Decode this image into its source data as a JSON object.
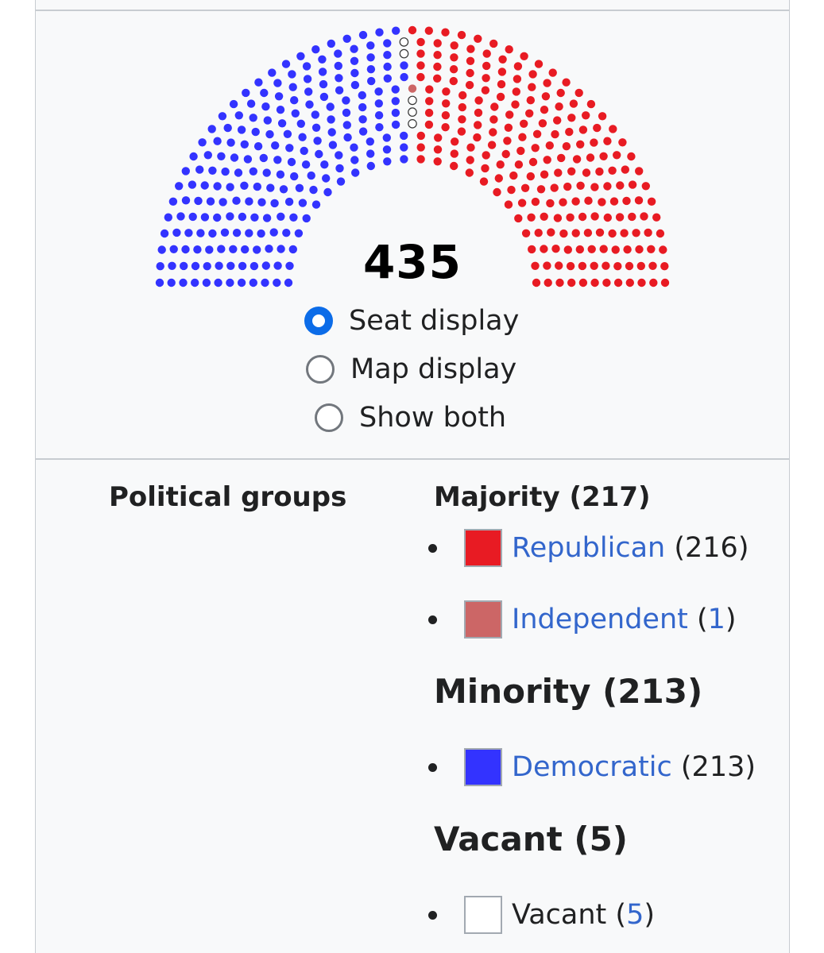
{
  "seat_chart": {
    "total": "435",
    "total_seats": 435,
    "order": [
      "democratic",
      "vacant",
      "independent",
      "republican"
    ],
    "parties": {
      "democratic": {
        "seats": 213,
        "color": "#3333ff"
      },
      "vacant": {
        "seats": 5,
        "color": "#ffffff"
      },
      "independent": {
        "seats": 1,
        "color": "#cc6666"
      },
      "republican": {
        "seats": 216,
        "color": "#e81b23"
      }
    }
  },
  "display_options": [
    {
      "label": "Seat display",
      "checked": true
    },
    {
      "label": "Map display",
      "checked": false
    },
    {
      "label": "Show both",
      "checked": false
    }
  ],
  "political_groups": {
    "title": "Political groups",
    "groups": [
      {
        "heading": "Majority (217)",
        "members": [
          {
            "name": "Republican",
            "count": "(216)",
            "color": "#e81b23",
            "count_linked": false
          },
          {
            "name": "Independent",
            "count": "1",
            "color": "#cc6666",
            "count_linked": true
          }
        ]
      },
      {
        "heading": "Minority (213)",
        "members": [
          {
            "name": "Democratic",
            "count": "(213)",
            "color": "#3333ff",
            "count_linked": false
          }
        ]
      },
      {
        "heading": "Vacant (5)",
        "members": [
          {
            "name": "Vacant",
            "count": "5",
            "color": "#ffffff",
            "count_linked": true
          }
        ]
      }
    ]
  }
}
